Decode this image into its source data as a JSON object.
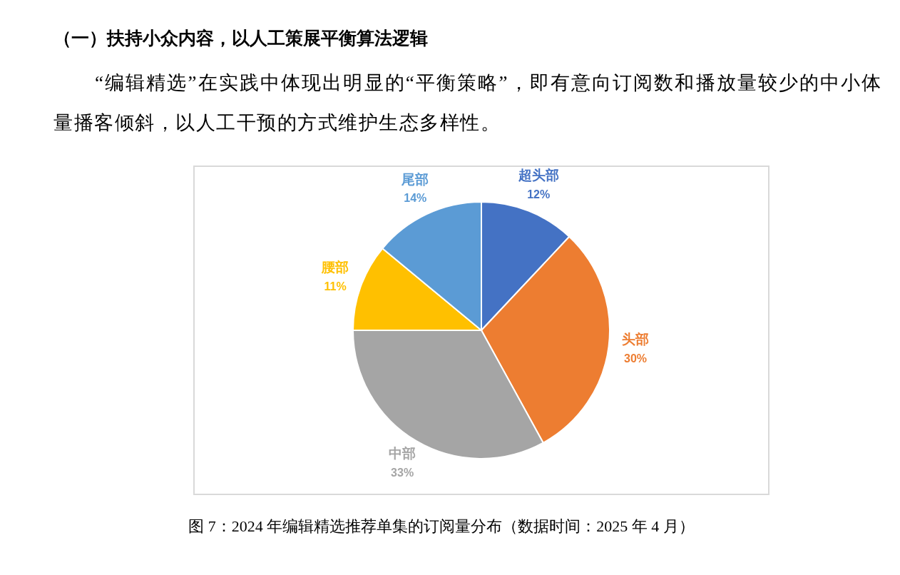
{
  "chart_data": {
    "type": "pie",
    "title": "（一）扶持小众内容，以人工策展平衡算法逻辑",
    "subtitle": "“编辑精选”在实践中体现出明显的“平衡策略”，即有意向订阅数和播放量较少的中小体量播客倾斜，以人工干预的方式维护生态多样性。",
    "annotations": [
      "图 7：2024 年编辑精选推荐单集的订阅量分布（数据时间：2025 年 4 月）"
    ],
    "categories": [
      "超头部",
      "头部",
      "中部",
      "腰部",
      "尾部"
    ],
    "values": [
      12,
      30,
      33,
      11,
      14
    ],
    "value_labels": [
      "12%",
      "30%",
      "33%",
      "11%",
      "14%"
    ],
    "colors": [
      "#4472c4",
      "#ed7d31",
      "#a5a5a5",
      "#ffc000",
      "#5b9bd5"
    ],
    "legend": false
  }
}
